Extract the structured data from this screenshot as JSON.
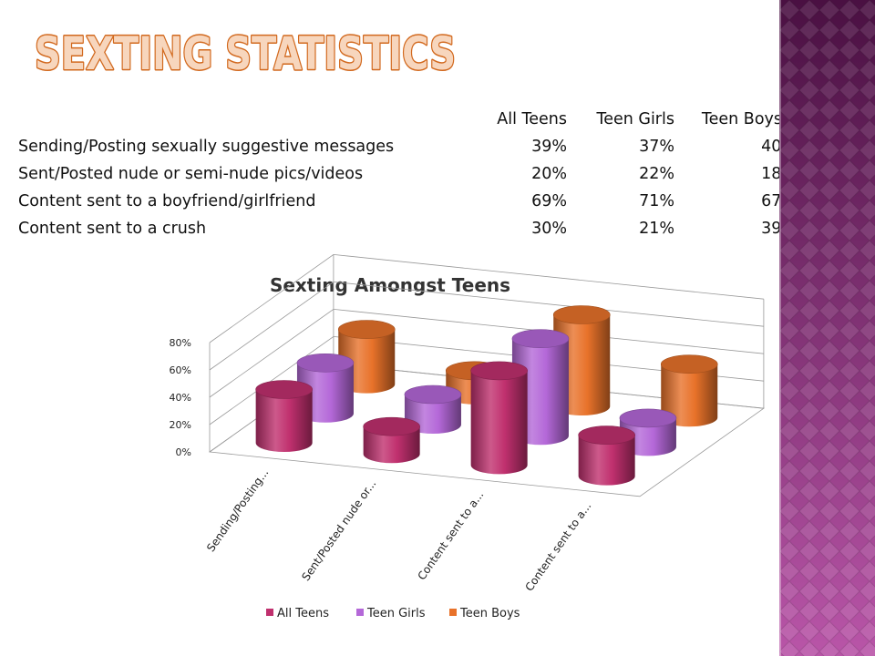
{
  "title": "Sexting Statistics",
  "table": {
    "headers": [
      "All Teens",
      "Teen Girls",
      "Teen Boys"
    ],
    "rows": [
      {
        "label": "Sending/Posting sexually suggestive messages",
        "values": [
          "39%",
          "37%",
          "40%"
        ]
      },
      {
        "label": "Sent/Posted nude or semi-nude pics/videos",
        "values": [
          "20%",
          "22%",
          "18%"
        ]
      },
      {
        "label": "Content sent to a boyfriend/girlfriend",
        "values": [
          "69%",
          "71%",
          "67%"
        ]
      },
      {
        "label": "Content sent to a crush",
        "values": [
          "30%",
          "21%",
          "39%"
        ]
      }
    ]
  },
  "colors": {
    "title_fill": "#f7d6bd",
    "title_stroke": "#d2691e",
    "band_base": "#7a2a70",
    "band_light": "#b955a8",
    "grid": "#999999"
  },
  "chart_data": {
    "type": "bar",
    "title": "Sexting Amongst Teens",
    "categories": [
      "Sending/Posting...",
      "Sent/Posted nude or...",
      "Content sent to a...",
      "Content sent to a..."
    ],
    "series": [
      {
        "name": "All Teens",
        "values": [
          0.39,
          0.2,
          0.69,
          0.3
        ],
        "color": "#c0306e"
      },
      {
        "name": "Teen Girls",
        "values": [
          0.37,
          0.22,
          0.71,
          0.21
        ],
        "color": "#b468d8"
      },
      {
        "name": "Teen Boys",
        "values": [
          0.4,
          0.18,
          0.67,
          0.39
        ],
        "color": "#e8722a"
      }
    ],
    "y_ticks": [
      "0%",
      "20%",
      "40%",
      "60%",
      "80%"
    ],
    "ylim": [
      0,
      0.8
    ],
    "grid": true,
    "legend": "bottom",
    "style": "3d-cylinder"
  }
}
